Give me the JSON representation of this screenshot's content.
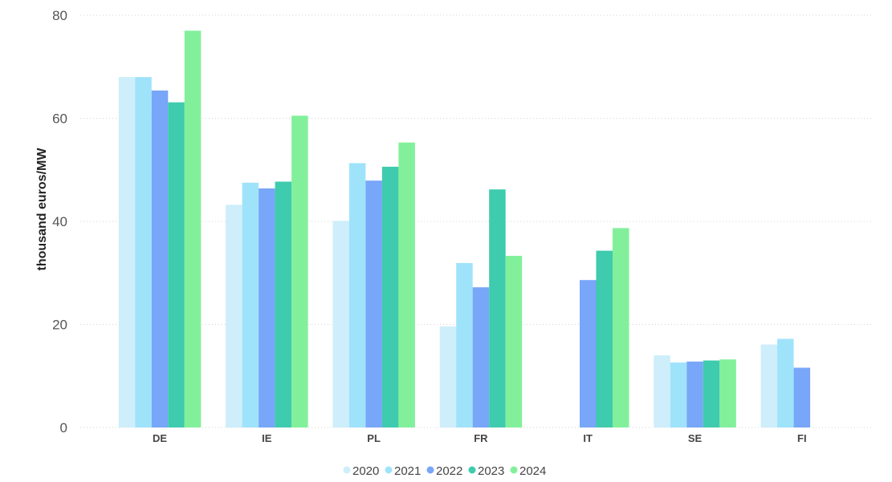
{
  "chart_data": {
    "type": "bar",
    "title": "",
    "xlabel": "",
    "ylabel": "thousand euros/MW",
    "ylim": [
      0,
      80
    ],
    "yticks": [
      0,
      20,
      40,
      60,
      80
    ],
    "grid": true,
    "legend_position": "bottom-center",
    "categories": [
      "DE",
      "IE",
      "PL",
      "FR",
      "IT",
      "SE",
      "FI"
    ],
    "series": [
      {
        "name": "2020",
        "color": "#cdeefa",
        "values": [
          68,
          43.2,
          40.1,
          19.6,
          null,
          14,
          16.1
        ]
      },
      {
        "name": "2021",
        "color": "#9fe3fb",
        "values": [
          68,
          47.5,
          51.3,
          31.9,
          null,
          12.6,
          17.2
        ]
      },
      {
        "name": "2022",
        "color": "#78a6f8",
        "values": [
          65.4,
          46.4,
          47.9,
          27.2,
          28.6,
          12.8,
          11.6
        ]
      },
      {
        "name": "2023",
        "color": "#3ecbae",
        "values": [
          63.1,
          47.7,
          50.6,
          46.2,
          34.3,
          13,
          null
        ]
      },
      {
        "name": "2024",
        "color": "#82f09a",
        "values": [
          77,
          60.5,
          55.3,
          33.3,
          38.7,
          13.2,
          null
        ]
      }
    ]
  }
}
